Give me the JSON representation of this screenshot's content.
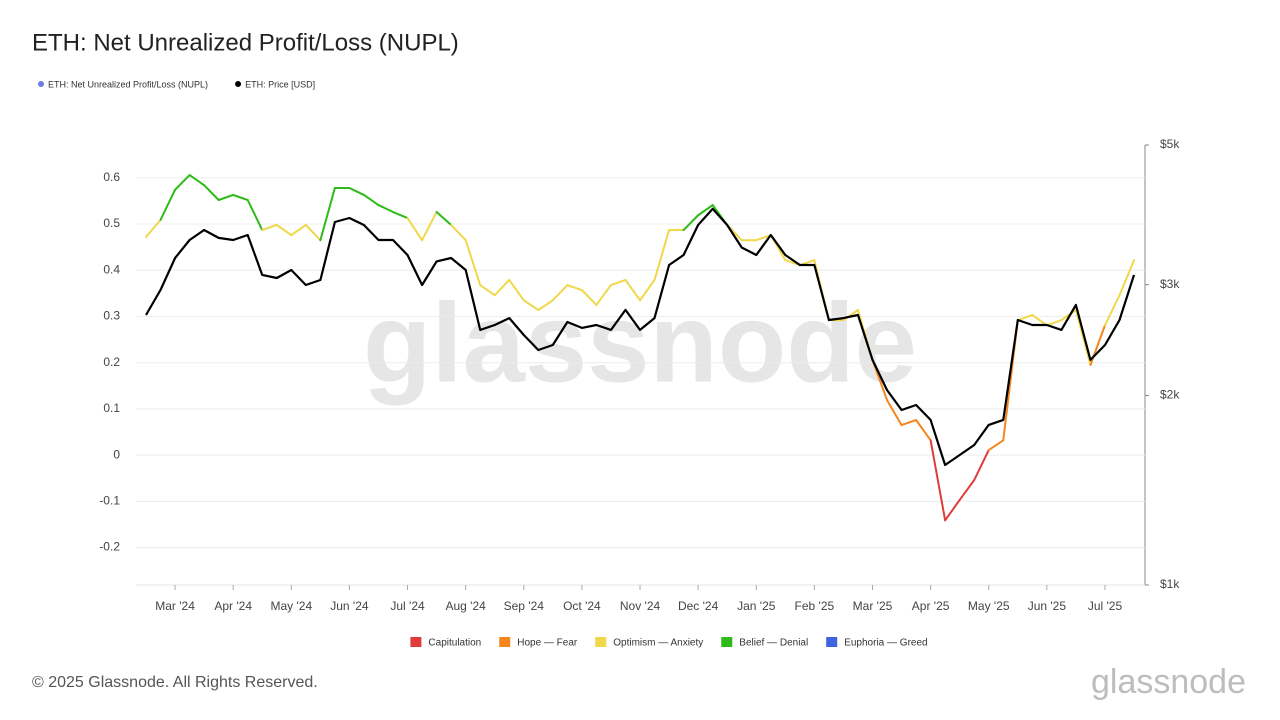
{
  "chart_data": {
    "type": "line",
    "title": "ETH: Net Unrealized Profit/Loss (NUPL)",
    "footer": "© 2025 Glassnode. All Rights Reserved.",
    "watermark": "glassnode",
    "logo": "glassnode",
    "categories": [
      null,
      null,
      "Mar '24",
      null,
      null,
      null,
      "Apr '24",
      null,
      null,
      null,
      "May '24",
      null,
      null,
      null,
      "Jun '24",
      null,
      null,
      null,
      "Jul '24",
      null,
      null,
      null,
      "Aug '24",
      null,
      null,
      null,
      "Sep '24",
      null,
      null,
      null,
      "Oct '24",
      null,
      null,
      null,
      "Nov '24",
      null,
      null,
      null,
      "Dec '24",
      null,
      null,
      null,
      "Jan '25",
      null,
      null,
      null,
      "Feb '25",
      null,
      null,
      null,
      "Mar '25",
      null,
      null,
      null,
      "Apr '25",
      null,
      null,
      null,
      "May '25",
      null,
      null,
      null,
      "Jun '25",
      null,
      null,
      null,
      "Jul '25",
      null,
      null
    ],
    "series": [
      {
        "name": "ETH: Net Unrealized Profit/Loss (NUPL)",
        "color": "#6b7ce6",
        "values": [
          0.472,
          0.509,
          0.574,
          0.606,
          0.584,
          0.552,
          0.563,
          0.552,
          0.487,
          0.498,
          0.476,
          0.498,
          0.465,
          0.578,
          0.578,
          0.563,
          0.541,
          0.526,
          0.513,
          0.465,
          0.526,
          0.498,
          0.465,
          0.368,
          0.346,
          0.379,
          0.335,
          0.314,
          0.335,
          0.368,
          0.357,
          0.325,
          0.368,
          0.379,
          0.335,
          0.379,
          0.487,
          0.487,
          0.519,
          0.541,
          0.498,
          0.465,
          0.465,
          0.476,
          0.422,
          0.411,
          0.422,
          0.292,
          0.292,
          0.314,
          0.206,
          0.119,
          0.065,
          0.076,
          0.032,
          -0.141,
          -0.097,
          -0.054,
          0.011,
          0.032,
          0.292,
          0.303,
          0.281,
          0.292,
          0.314,
          0.195,
          0.281,
          0.346,
          0.422
        ]
      },
      {
        "name": "ETH: Price [USD]",
        "color": "#000000",
        "axis": "y2",
        "values": [
          2685,
          2942,
          3307,
          3532,
          3664,
          3560,
          3532,
          3597,
          3109,
          3074,
          3165,
          2996,
          3051,
          3772,
          3828,
          3731,
          3532,
          3532,
          3344,
          2996,
          3266,
          3307,
          3165,
          2542,
          2588,
          2655,
          2495,
          2362,
          2406,
          2617,
          2561,
          2588,
          2542,
          2735,
          2542,
          2655,
          3224,
          3344,
          3731,
          3960,
          3731,
          3437,
          3344,
          3597,
          3344,
          3224,
          3224,
          2636,
          2655,
          2685,
          2278,
          2041,
          1897,
          1932,
          1829,
          1551,
          1609,
          1669,
          1796,
          1829,
          2636,
          2588,
          2588,
          2542,
          2786,
          2278,
          2406,
          2636,
          3109
        ]
      }
    ],
    "zones": [
      {
        "name": "Capitulation",
        "color": "#e03b3b",
        "max": 0
      },
      {
        "name": "Hope — Fear",
        "color": "#f5861e",
        "max": 0.25
      },
      {
        "name": "Optimism — Anxiety",
        "color": "#f0d84a",
        "max": 0.5
      },
      {
        "name": "Belief — Denial",
        "color": "#2dbb17",
        "max": 0.75
      },
      {
        "name": "Euphoria — Greed",
        "color": "#3d63e0",
        "max": 1
      }
    ],
    "ylim": [
      -0.281,
      0.671
    ],
    "yticks": [
      -0.2,
      -0.1,
      0,
      0.1,
      0.2,
      0.3,
      0.4,
      0.5,
      0.6
    ],
    "y2lim": [
      1000,
      5000
    ],
    "y2log": true,
    "y2ticks": [
      {
        "value": 1000,
        "label": "$1k"
      },
      {
        "value": 2000,
        "label": "$2k"
      },
      {
        "value": 3000,
        "label": "$3k"
      },
      {
        "value": 5000,
        "label": "$5k"
      }
    ],
    "grid": true
  }
}
